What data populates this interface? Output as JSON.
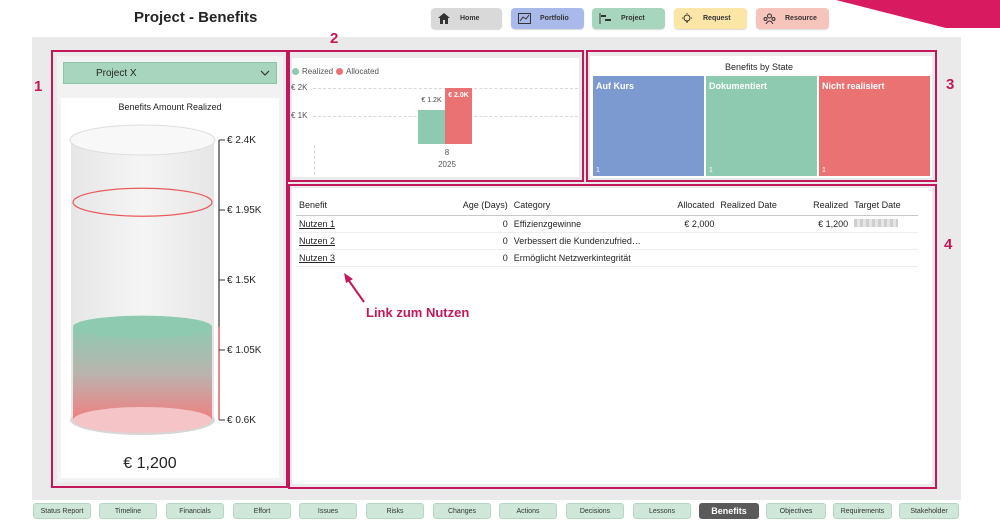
{
  "header": {
    "title": "Project - Benefits",
    "nav": [
      {
        "label": "Home",
        "icon": "home-icon",
        "color": "#d9d9d9"
      },
      {
        "label": "Portfolio",
        "icon": "chart-icon",
        "color": "#a9b9ea"
      },
      {
        "label": "Project",
        "icon": "gantt-icon",
        "color": "#a8d5be"
      },
      {
        "label": "Request",
        "icon": "lightbulb-icon",
        "color": "#fbe6a8"
      },
      {
        "label": "Resource",
        "icon": "people-icon",
        "color": "#f7c4bb"
      }
    ]
  },
  "callouts": [
    "1",
    "2",
    "3",
    "4"
  ],
  "slicer": {
    "value": "Project X"
  },
  "gauge": {
    "title": "Benefits Amount Realized",
    "ticks": [
      "€ 2.4K",
      "€ 1.95K",
      "€ 1.5K",
      "€ 1.05K",
      "€ 0.6K"
    ],
    "value_label": "€ 1,200",
    "value": 1200,
    "target": 2000,
    "range": [
      600,
      2400
    ]
  },
  "column_chart": {
    "legend": [
      {
        "label": "Realized",
        "color": "#8dcab0"
      },
      {
        "label": "Allocated",
        "color": "#ea7272"
      }
    ],
    "y_ticks": [
      "€ 2K",
      "€ 1K"
    ],
    "bars": [
      {
        "series": "Realized",
        "value": 1200,
        "label": "€ 1.2K"
      },
      {
        "series": "Allocated",
        "value": 2000,
        "label": "€ 2.0K"
      }
    ],
    "x_label": "8",
    "x_year": "2025"
  },
  "treemap": {
    "title": "Benefits by State",
    "cells": [
      {
        "label": "Auf Kurs",
        "count": "1",
        "color": "#7c9ad0"
      },
      {
        "label": "Dokumentiert",
        "count": "1",
        "color": "#8dcab0"
      },
      {
        "label": "Nicht realisiert",
        "count": "1",
        "color": "#ea7272"
      }
    ]
  },
  "table": {
    "headers": [
      "Benefit",
      "Age (Days)",
      "Category",
      "Allocated",
      "Realized Date",
      "Realized",
      "Target Date"
    ],
    "rows": [
      {
        "benefit": "Nutzen 1",
        "age": "0",
        "category": "Effizienzgewinne",
        "allocated": "€ 2,000",
        "realized_date": "",
        "realized": "€ 1,200"
      },
      {
        "benefit": "Nutzen 2",
        "age": "0",
        "category": "Verbessert die Kundenzufried…",
        "allocated": "",
        "realized_date": "",
        "realized": ""
      },
      {
        "benefit": "Nutzen 3",
        "age": "0",
        "category": "Ermöglicht Netzwerkintegrität",
        "allocated": "",
        "realized_date": "",
        "realized": ""
      }
    ]
  },
  "annotation": {
    "label": "Link zum Nutzen"
  },
  "tabs": [
    "Status Report",
    "Timeline",
    "Financials",
    "Effort",
    "Issues",
    "Risks",
    "Changes",
    "Actions",
    "Decisions",
    "Lessons",
    "Benefits",
    "Objectives",
    "Requirements",
    "Stakeholder"
  ],
  "active_tab": "Benefits",
  "colors": {
    "accent": "#c2185b",
    "brand": "#d81b60"
  }
}
